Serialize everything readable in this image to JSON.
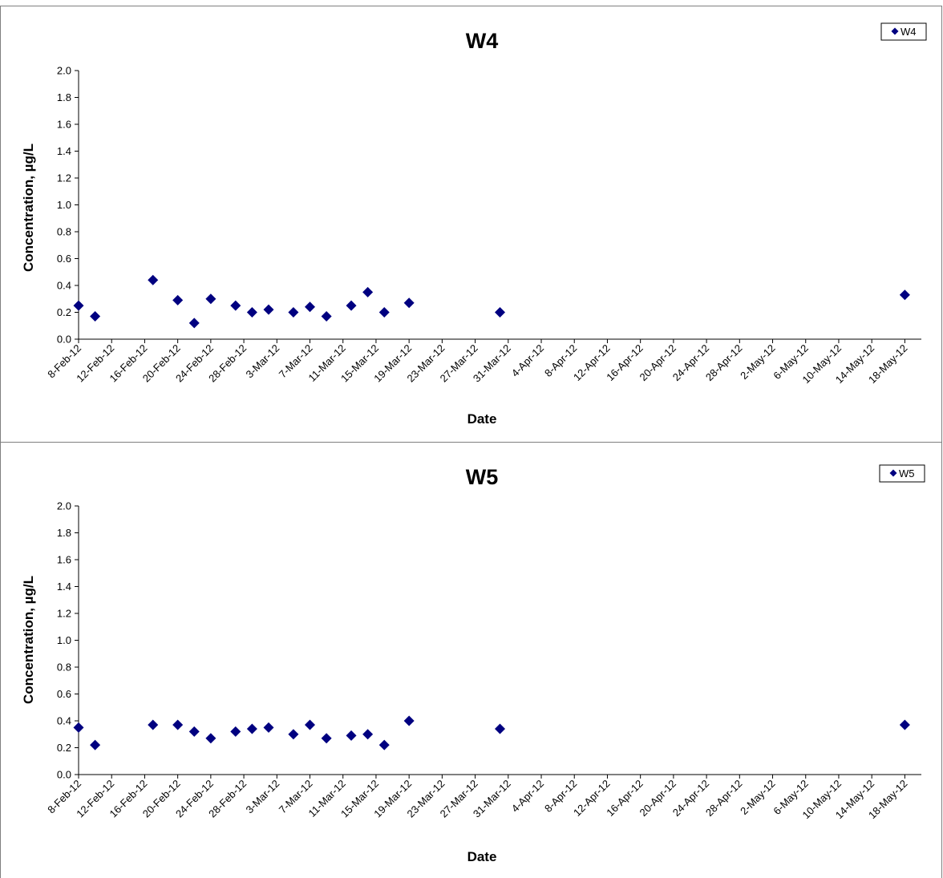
{
  "chart_data": [
    {
      "type": "scatter",
      "title": "W4",
      "xlabel": "Date",
      "ylabel": "Concentration, µg/L",
      "ylim": [
        0.0,
        2.0
      ],
      "yticks": [
        "0.0",
        "0.2",
        "0.4",
        "0.6",
        "0.8",
        "1.0",
        "1.2",
        "1.4",
        "1.6",
        "1.8",
        "2.0"
      ],
      "xlim": [
        "2012-02-08",
        "2012-05-20"
      ],
      "xticks": [
        "8-Feb-12",
        "12-Feb-12",
        "16-Feb-12",
        "20-Feb-12",
        "24-Feb-12",
        "28-Feb-12",
        "3-Mar-12",
        "7-Mar-12",
        "11-Mar-12",
        "15-Mar-12",
        "19-Mar-12",
        "23-Mar-12",
        "27-Mar-12",
        "31-Mar-12",
        "4-Apr-12",
        "8-Apr-12",
        "12-Apr-12",
        "16-Apr-12",
        "20-Apr-12",
        "24-Apr-12",
        "28-Apr-12",
        "2-May-12",
        "6-May-12",
        "10-May-12",
        "14-May-12",
        "18-May-12"
      ],
      "grid": false,
      "legend_position": "top-right",
      "marker_color": "#000080",
      "series": [
        {
          "name": "W4",
          "x": [
            "2012-02-08",
            "2012-02-10",
            "2012-02-17",
            "2012-02-20",
            "2012-02-22",
            "2012-02-24",
            "2012-02-27",
            "2012-02-29",
            "2012-03-02",
            "2012-03-05",
            "2012-03-07",
            "2012-03-09",
            "2012-03-12",
            "2012-03-14",
            "2012-03-16",
            "2012-03-19",
            "2012-03-30",
            "2012-05-18"
          ],
          "y": [
            0.25,
            0.17,
            0.44,
            0.29,
            0.12,
            0.3,
            0.25,
            0.2,
            0.22,
            0.2,
            0.24,
            0.17,
            0.25,
            0.35,
            0.2,
            0.27,
            0.2,
            0.33
          ]
        }
      ]
    },
    {
      "type": "scatter",
      "title": "W5",
      "xlabel": "Date",
      "ylabel": "Concentration, µg/L",
      "ylim": [
        0.0,
        2.0
      ],
      "yticks": [
        "0.0",
        "0.2",
        "0.4",
        "0.6",
        "0.8",
        "1.0",
        "1.2",
        "1.4",
        "1.6",
        "1.8",
        "2.0"
      ],
      "xlim": [
        "2012-02-08",
        "2012-05-20"
      ],
      "xticks": [
        "8-Feb-12",
        "12-Feb-12",
        "16-Feb-12",
        "20-Feb-12",
        "24-Feb-12",
        "28-Feb-12",
        "3-Mar-12",
        "7-Mar-12",
        "11-Mar-12",
        "15-Mar-12",
        "19-Mar-12",
        "23-Mar-12",
        "27-Mar-12",
        "31-Mar-12",
        "4-Apr-12",
        "8-Apr-12",
        "12-Apr-12",
        "16-Apr-12",
        "20-Apr-12",
        "24-Apr-12",
        "28-Apr-12",
        "2-May-12",
        "6-May-12",
        "10-May-12",
        "14-May-12",
        "18-May-12"
      ],
      "grid": false,
      "legend_position": "top-right",
      "marker_color": "#000080",
      "series": [
        {
          "name": "W5",
          "x": [
            "2012-02-08",
            "2012-02-10",
            "2012-02-17",
            "2012-02-20",
            "2012-02-22",
            "2012-02-24",
            "2012-02-27",
            "2012-02-29",
            "2012-03-02",
            "2012-03-05",
            "2012-03-07",
            "2012-03-09",
            "2012-03-12",
            "2012-03-14",
            "2012-03-16",
            "2012-03-19",
            "2012-03-30",
            "2012-05-18"
          ],
          "y": [
            0.35,
            0.22,
            0.37,
            0.37,
            0.32,
            0.27,
            0.32,
            0.34,
            0.35,
            0.3,
            0.37,
            0.27,
            0.29,
            0.3,
            0.22,
            0.4,
            0.34,
            0.37
          ]
        }
      ]
    }
  ]
}
